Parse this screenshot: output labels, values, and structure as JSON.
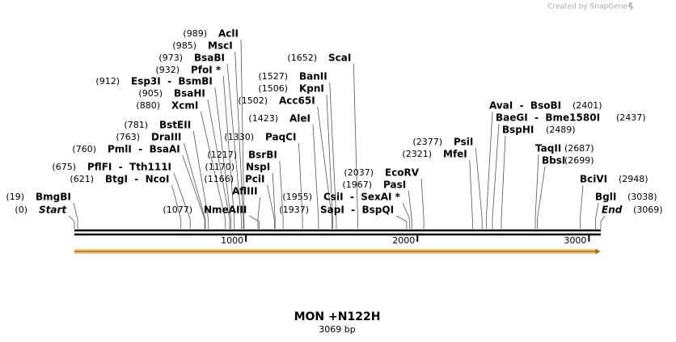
{
  "credit": "Created by SnapGene",
  "sequence": {
    "name": "MON +N122H",
    "length_label": "3069 bp",
    "length": 3069
  },
  "ruler": {
    "ticks": [
      1000,
      2000,
      3000
    ]
  },
  "sites": [
    {
      "position": {
        "value": 989,
        "label": "(989)"
      },
      "name": "AclI"
    },
    {
      "position": {
        "value": 985,
        "label": "(985)"
      },
      "name": "MscI"
    },
    {
      "position": {
        "value": 973,
        "label": "(973)"
      },
      "name": "BsaBI"
    },
    {
      "position": {
        "value": 932,
        "label": "(932)"
      },
      "name": "PfoI *"
    },
    {
      "position": {
        "value": 912,
        "label": "(912)"
      },
      "name": "Esp3I  -  BsmBI"
    },
    {
      "position": {
        "value": 905,
        "label": "(905)"
      },
      "name": "BsaHI"
    },
    {
      "position": {
        "value": 880,
        "label": "(880)"
      },
      "name": "XcmI"
    },
    {
      "position": {
        "value": 781,
        "label": "(781)"
      },
      "name": "BstEII"
    },
    {
      "position": {
        "value": 763,
        "label": "(763)"
      },
      "name": "DraIII"
    },
    {
      "position": {
        "value": 760,
        "label": "(760)"
      },
      "name": "PmlI  -  BsaAI"
    },
    {
      "position": {
        "value": 675,
        "label": "(675)"
      },
      "name": "PflFI  -  Tth111I"
    },
    {
      "position": {
        "value": 621,
        "label": "(621)"
      },
      "name": "BtgI  -  NcoI"
    },
    {
      "position": {
        "value": 19,
        "label": "(19)"
      },
      "name": "BmgBI"
    },
    {
      "position": {
        "value": 0,
        "label": "(0)"
      },
      "name": "Start"
    },
    {
      "position": {
        "value": 1077,
        "label": "(1077)"
      },
      "name": "NmeAIII"
    },
    {
      "position": {
        "value": 1330,
        "label": "(1330)"
      },
      "name": "PaqCI"
    },
    {
      "position": {
        "value": 1217,
        "label": "(1217)"
      },
      "name": "BsrBI"
    },
    {
      "position": {
        "value": 1170,
        "label": "(1170)"
      },
      "name": "NspI"
    },
    {
      "position": {
        "value": 1166,
        "label": "(1166)"
      },
      "name": "PciI"
    },
    {
      "name": "AflIII"
    },
    {
      "position": {
        "value": 1652,
        "label": "(1652)"
      },
      "name": "ScaI"
    },
    {
      "position": {
        "value": 1527,
        "label": "(1527)"
      },
      "name": "BanII"
    },
    {
      "position": {
        "value": 1506,
        "label": "(1506)"
      },
      "name": "KpnI"
    },
    {
      "position": {
        "value": 1502,
        "label": "(1502)"
      },
      "name": "Acc65I"
    },
    {
      "position": {
        "value": 1423,
        "label": "(1423)"
      },
      "name": "AleI"
    },
    {
      "position": {
        "value": 1955,
        "label": "(1955)"
      },
      "name": "CsiI  -  SexAI *"
    },
    {
      "position": {
        "value": 1937,
        "label": "(1937)"
      },
      "name": "SapI  -  BspQI"
    },
    {
      "position": {
        "value": 2037,
        "label": "(2037)"
      },
      "name": "EcoRV"
    },
    {
      "position": {
        "value": 1967,
        "label": "(1967)"
      },
      "name": "PasI"
    },
    {
      "position": {
        "value": 2377,
        "label": "(2377)"
      },
      "name": "PsiI"
    },
    {
      "position": {
        "value": 2321,
        "label": "(2321)"
      },
      "name": "MfeI"
    },
    {
      "position": {
        "value": 2401,
        "label": "(2401)"
      },
      "name": "AvaI  -  BsoBI"
    },
    {
      "position": {
        "value": 2437,
        "label": "(2437)"
      },
      "name": "BaeGI  -  Bme1580I"
    },
    {
      "position": {
        "value": 2489,
        "label": "(2489)"
      },
      "name": "BspHI"
    },
    {
      "position": {
        "value": 2687,
        "label": "(2687)"
      },
      "name": "TaqII"
    },
    {
      "position": {
        "value": 2699,
        "label": "(2699)"
      },
      "name": "BbsI"
    },
    {
      "position": {
        "value": 2948,
        "label": "(2948)"
      },
      "name": "BciVI"
    },
    {
      "position": {
        "value": 3038,
        "label": "(3038)"
      },
      "name": "BglI"
    },
    {
      "position": {
        "value": 3069,
        "label": "(3069)"
      },
      "name": "End"
    }
  ]
}
